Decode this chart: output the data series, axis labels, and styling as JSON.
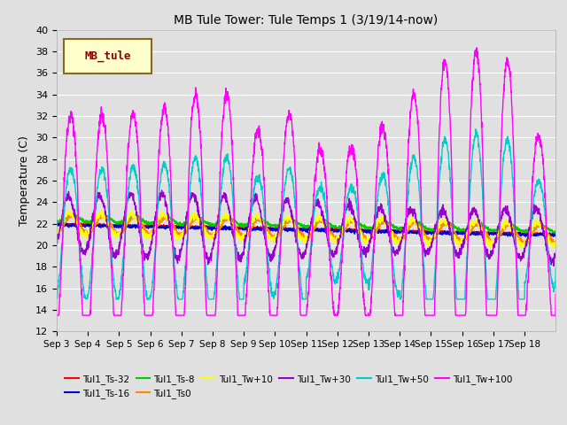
{
  "title": "MB Tule Tower: Tule Temps 1 (3/19/14-now)",
  "ylabel": "Temperature (C)",
  "ylim": [
    12,
    40
  ],
  "bg_color": "#e0e0e0",
  "legend_label": "MB_tule",
  "legend_box_color": "#ffffcc",
  "legend_box_edge": "#8b6914",
  "series": [
    {
      "label": "Tul1_Ts-32",
      "color": "#ff0000"
    },
    {
      "label": "Tul1_Ts-16",
      "color": "#0000cc"
    },
    {
      "label": "Tul1_Ts-8",
      "color": "#00cc00"
    },
    {
      "label": "Tul1_Ts0",
      "color": "#ff8800"
    },
    {
      "label": "Tul1_Tw+10",
      "color": "#ffff00"
    },
    {
      "label": "Tul1_Tw+30",
      "color": "#9900cc"
    },
    {
      "label": "Tul1_Tw+50",
      "color": "#00cccc"
    },
    {
      "label": "Tul1_Tw+100",
      "color": "#ff00ff"
    }
  ],
  "xtick_labels": [
    "Sep 3",
    "Sep 4",
    "Sep 5",
    "Sep 6",
    "Sep 7",
    "Sep 8",
    "Sep 9",
    "Sep 10",
    "Sep 11",
    "Sep 12",
    "Sep 13",
    "Sep 14",
    "Sep 15",
    "Sep 16",
    "Sep 17",
    "Sep 18"
  ],
  "n_days": 16,
  "pts_per_day": 144
}
